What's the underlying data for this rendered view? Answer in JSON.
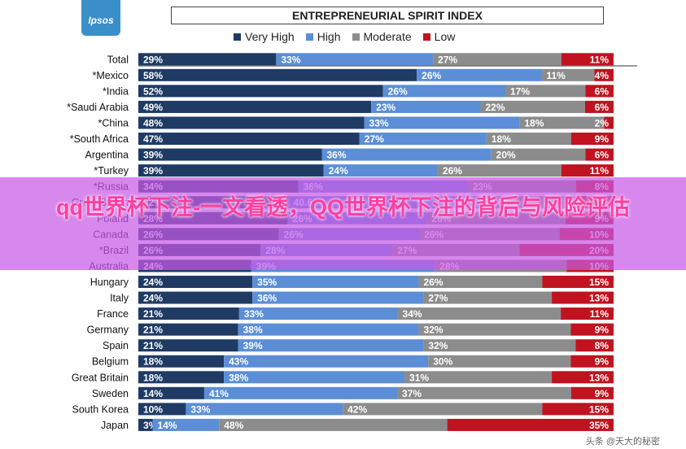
{
  "logo": {
    "text": "Ipsos"
  },
  "overlay": {
    "text": "qq世界杯下注-一文看透，QQ世界杯下注的背后与风险评估"
  },
  "watermark": {
    "text": "头条 @天大的秘密"
  },
  "colors": {
    "very_high": "#1f3b64",
    "high": "#5b8ed6",
    "moderate": "#8c8c8c",
    "low": "#c1121f"
  },
  "chart_data": {
    "type": "bar",
    "orientation": "horizontal",
    "stacked": true,
    "title": "ENTREPRENEURIAL SPIRIT INDEX",
    "legend_position": "top",
    "series_names": [
      "Very High",
      "High",
      "Moderate",
      "Low"
    ],
    "categories": [
      "Total",
      "*Mexico",
      "*India",
      "*Saudi Arabia",
      "*China",
      "*South Africa",
      "Argentina",
      "*Turkey",
      "*Russia",
      "Great Britain",
      "Poland",
      "Canada",
      "*Brazil",
      "Australia",
      "Hungary",
      "Italy",
      "France",
      "Germany",
      "Spain",
      "Belgium",
      "Great Britain",
      "Sweden",
      "South Korea",
      "Japan"
    ],
    "series": [
      {
        "name": "Very High",
        "values": [
          29,
          58,
          52,
          49,
          48,
          47,
          39,
          39,
          34,
          32,
          28,
          26,
          26,
          24,
          24,
          24,
          21,
          21,
          21,
          18,
          18,
          14,
          10,
          3
        ]
      },
      {
        "name": "High",
        "values": [
          33,
          26,
          26,
          23,
          33,
          27,
          36,
          24,
          36,
          40.6,
          26,
          26,
          28,
          39,
          35,
          36,
          33,
          38,
          39,
          43,
          38,
          41,
          33,
          14
        ]
      },
      {
        "name": "Moderate",
        "values": [
          27,
          11,
          17,
          22,
          18,
          18,
          20,
          26,
          23,
          20.6,
          26,
          26,
          27,
          28,
          26,
          27,
          34,
          32,
          32,
          30,
          31,
          37,
          42,
          48
        ]
      },
      {
        "name": "Low",
        "values": [
          11,
          4,
          6,
          6,
          2,
          9,
          6,
          11,
          8,
          8,
          9,
          10,
          20,
          10,
          15,
          13,
          11,
          9,
          8,
          9,
          13,
          9,
          15,
          35
        ]
      }
    ],
    "label_texts": [
      [
        "29%",
        "33%",
        "27%",
        "11%"
      ],
      [
        "58%",
        "26%",
        "11%",
        "4%"
      ],
      [
        "52%",
        "26%",
        "17%",
        "6%"
      ],
      [
        "49%",
        "23%",
        "22%",
        "6%"
      ],
      [
        "48%",
        "33%",
        "18%",
        "2%"
      ],
      [
        "47%",
        "27%",
        "18%",
        "9%"
      ],
      [
        "39%",
        "36%",
        "20%",
        "6%"
      ],
      [
        "39%",
        "24%",
        "26%",
        "11%"
      ],
      [
        "34%",
        "36%",
        "23%",
        "8%"
      ],
      [
        "32%",
        "40.6",
        "20.6",
        "8%"
      ],
      [
        "28%",
        "26%",
        "26%",
        "9%"
      ],
      [
        "26%",
        "26%",
        "26%",
        "10%"
      ],
      [
        "26%",
        "28%",
        "27%",
        "20%"
      ],
      [
        "24%",
        "39%",
        "28%",
        "10%"
      ],
      [
        "24%",
        "35%",
        "26%",
        "15%"
      ],
      [
        "24%",
        "36%",
        "27%",
        "13%"
      ],
      [
        "21%",
        "33%",
        "34%",
        "11%"
      ],
      [
        "21%",
        "38%",
        "32%",
        "9%"
      ],
      [
        "21%",
        "39%",
        "32%",
        "8%"
      ],
      [
        "18%",
        "43%",
        "30%",
        "9%"
      ],
      [
        "18%",
        "38%",
        "31%",
        "13%"
      ],
      [
        "14%",
        "41%",
        "37%",
        "9%"
      ],
      [
        "10%",
        "33%",
        "42%",
        "15%"
      ],
      [
        "3%",
        "14%",
        "48%",
        "35%"
      ]
    ]
  }
}
